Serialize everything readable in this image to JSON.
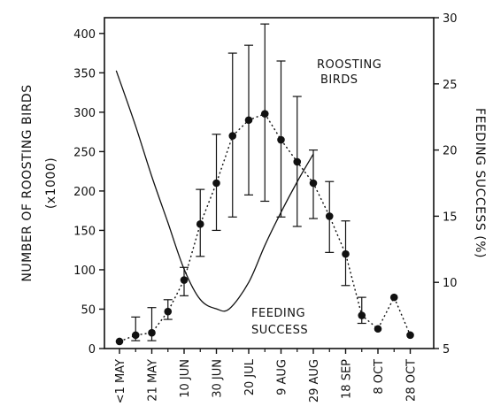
{
  "chart_data": {
    "type": "line",
    "title": "",
    "x_categories": [
      "<1 MAY",
      "21 MAY",
      "10 JUN",
      "30 JUN",
      "20 JUL",
      "9 AUG",
      "29 AUG",
      "18 SEP",
      "8 OCT",
      "28 OCT"
    ],
    "left_axis": {
      "label_line1": "NUMBER OF ROOSTING BIRDS",
      "label_line2": "(x1000)",
      "ylim": [
        0,
        420
      ],
      "ticks": [
        0,
        50,
        100,
        150,
        200,
        250,
        300,
        350,
        400
      ]
    },
    "right_axis": {
      "label": "FEEDING SUCCESS (%)",
      "ylim": [
        5,
        30
      ],
      "ticks": [
        5,
        10,
        15,
        20,
        25,
        30
      ]
    },
    "series": [
      {
        "name": "ROOSTING BIRDS",
        "label_line1": "ROOSTING",
        "label_line2": "BIRDS",
        "axis": "left",
        "style": "dotted line with filled circles and error bars",
        "x": [
          0,
          0.5,
          1,
          1.5,
          2,
          2.5,
          3,
          3.5,
          4,
          4.5,
          5,
          5.5,
          6,
          6.5,
          7,
          7.5,
          8,
          8.5,
          9
        ],
        "y": [
          9,
          17,
          20,
          47,
          87,
          158,
          210,
          270,
          290,
          298,
          265,
          237,
          210,
          168,
          120,
          42,
          25,
          65,
          17
        ],
        "y_err_low": [
          null,
          10,
          10,
          37,
          67,
          117,
          150,
          167,
          195,
          187,
          167,
          155,
          165,
          122,
          80,
          32,
          null,
          null,
          null
        ],
        "y_err_high": [
          null,
          40,
          52,
          62,
          103,
          202,
          272,
          375,
          385,
          412,
          365,
          320,
          252,
          212,
          162,
          65,
          null,
          null,
          null
        ]
      },
      {
        "name": "FEEDING SUCCESS",
        "label_line1": "FEEDING",
        "label_line2": "SUCCESS",
        "axis": "right",
        "style": "solid curve",
        "x": [
          -0.1,
          0.5,
          1,
          1.5,
          2,
          2.5,
          3,
          3.4,
          4,
          4.5,
          5,
          5.5,
          6
        ],
        "y": [
          26,
          21.8,
          18,
          14.5,
          11,
          8.7,
          8,
          8,
          10,
          12.8,
          15.3,
          17.6,
          19.7
        ]
      }
    ]
  }
}
